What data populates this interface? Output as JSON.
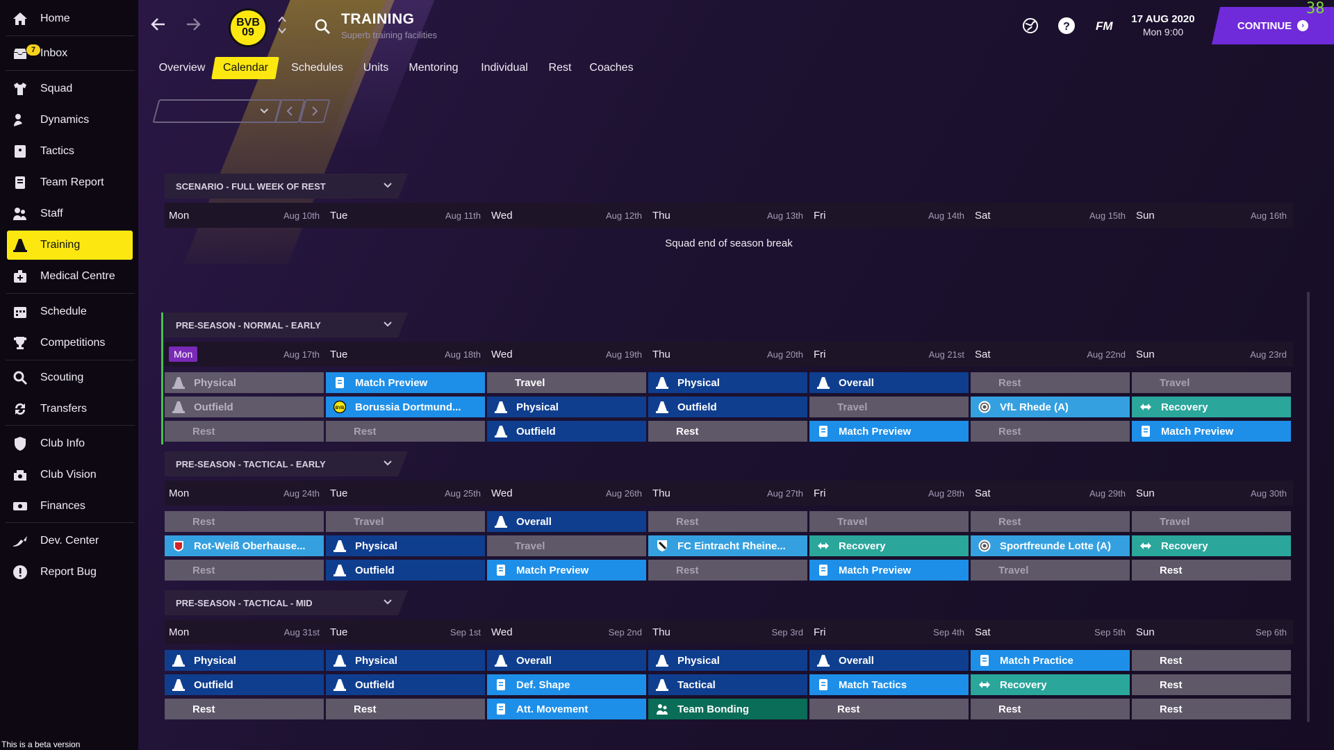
{
  "sidebar": {
    "items": [
      {
        "label": "Home",
        "icon": "home-icon"
      },
      {
        "label": "Inbox",
        "icon": "inbox-icon",
        "badge": "7"
      },
      {
        "label": "Squad",
        "icon": "shirt-icon"
      },
      {
        "label": "Dynamics",
        "icon": "dynamics-icon"
      },
      {
        "label": "Tactics",
        "icon": "tactics-icon"
      },
      {
        "label": "Team Report",
        "icon": "report-icon"
      },
      {
        "label": "Staff",
        "icon": "staff-icon"
      },
      {
        "label": "Training",
        "icon": "training-cone-icon",
        "active": true
      },
      {
        "label": "Medical Centre",
        "icon": "medical-icon"
      },
      {
        "label": "Schedule",
        "icon": "calendar-icon"
      },
      {
        "label": "Competitions",
        "icon": "trophy-icon"
      },
      {
        "label": "Scouting",
        "icon": "magnifier-icon"
      },
      {
        "label": "Transfers",
        "icon": "transfer-icon"
      },
      {
        "label": "Club Info",
        "icon": "shield-icon"
      },
      {
        "label": "Club Vision",
        "icon": "vision-icon"
      },
      {
        "label": "Finances",
        "icon": "money-icon"
      },
      {
        "label": "Dev. Center",
        "icon": "dev-center-icon"
      },
      {
        "label": "Report Bug",
        "icon": "exclamation-icon"
      }
    ],
    "beta_text": "This is a beta version"
  },
  "header": {
    "title": "TRAINING",
    "subtitle": "Superb training facilities",
    "crest_text": "BVB 09",
    "date": "17 AUG 2020",
    "time": "Mon 9:00",
    "fm_label": "FM",
    "continue_label": "CONTINUE",
    "fps": "38"
  },
  "tabs": [
    "Overview",
    "Calendar",
    "Schedules",
    "Units",
    "Mentoring",
    "Individual",
    "Rest",
    "Coaches"
  ],
  "active_tab": "Calendar",
  "colors": {
    "accent_yellow": "#fce810",
    "continue_purple": "#6f2bd9",
    "navy_session": "#0f3e8f",
    "sky_session": "#1e8fe8",
    "teal_session": "#2aa69b",
    "green_session": "#0a6d57",
    "grey_session": "#5e5869"
  },
  "sections": [
    {
      "title": "SCENARIO - FULL WEEK OF REST",
      "days": [
        {
          "day": "Mon",
          "date": "Aug 10th"
        },
        {
          "day": "Tue",
          "date": "Aug 11th"
        },
        {
          "day": "Wed",
          "date": "Aug 12th"
        },
        {
          "day": "Thu",
          "date": "Aug 13th"
        },
        {
          "day": "Fri",
          "date": "Aug 14th"
        },
        {
          "day": "Sat",
          "date": "Aug 15th"
        },
        {
          "day": "Sun",
          "date": "Aug 16th"
        }
      ],
      "note": "Squad end of season break",
      "sessions": []
    },
    {
      "title": "PRE-SEASON - NORMAL - EARLY",
      "days": [
        {
          "day": "Mon",
          "date": "Aug 17th",
          "active": true
        },
        {
          "day": "Tue",
          "date": "Aug 18th"
        },
        {
          "day": "Wed",
          "date": "Aug 19th"
        },
        {
          "day": "Thu",
          "date": "Aug 20th"
        },
        {
          "day": "Fri",
          "date": "Aug 21st"
        },
        {
          "day": "Sat",
          "date": "Aug 22nd"
        },
        {
          "day": "Sun",
          "date": "Aug 23rd"
        }
      ],
      "sessions": [
        [
          {
            "label": "Physical",
            "style": "grey",
            "icon": "cone"
          },
          {
            "label": "Match Preview",
            "style": "sky",
            "icon": "doc"
          },
          {
            "label": "Travel",
            "style": "grey-label"
          },
          {
            "label": "Physical",
            "style": "navy",
            "icon": "cone"
          },
          {
            "label": "Overall",
            "style": "navy",
            "icon": "cone"
          },
          {
            "label": "Rest",
            "style": "rest"
          },
          {
            "label": "Travel",
            "style": "rest"
          }
        ],
        [
          {
            "label": "Outfield",
            "style": "grey",
            "icon": "cone"
          },
          {
            "label": "Borussia Dortmund...",
            "style": "sky",
            "icon": "bvb"
          },
          {
            "label": "Physical",
            "style": "navy",
            "icon": "cone"
          },
          {
            "label": "Outfield",
            "style": "navy",
            "icon": "cone"
          },
          {
            "label": "Travel",
            "style": "rest"
          },
          {
            "label": "VfL Rhede (A)",
            "style": "lightsky",
            "icon": "club"
          },
          {
            "label": "Recovery",
            "style": "teal",
            "icon": "recovery"
          }
        ],
        [
          {
            "label": "Rest",
            "style": "rest"
          },
          {
            "label": "Rest",
            "style": "rest"
          },
          {
            "label": "Outfield",
            "style": "navy",
            "icon": "cone"
          },
          {
            "label": "Rest",
            "style": "restw"
          },
          {
            "label": "Match Preview",
            "style": "sky",
            "icon": "doc"
          },
          {
            "label": "Rest",
            "style": "rest"
          },
          {
            "label": "Match Preview",
            "style": "sky",
            "icon": "doc"
          }
        ]
      ]
    },
    {
      "title": "PRE-SEASON - TACTICAL - EARLY",
      "days": [
        {
          "day": "Mon",
          "date": "Aug 24th"
        },
        {
          "day": "Tue",
          "date": "Aug 25th"
        },
        {
          "day": "Wed",
          "date": "Aug 26th"
        },
        {
          "day": "Thu",
          "date": "Aug 27th"
        },
        {
          "day": "Fri",
          "date": "Aug 28th"
        },
        {
          "day": "Sat",
          "date": "Aug 29th"
        },
        {
          "day": "Sun",
          "date": "Aug 30th"
        }
      ],
      "sessions": [
        [
          {
            "label": "Rest",
            "style": "rest"
          },
          {
            "label": "Travel",
            "style": "rest"
          },
          {
            "label": "Overall",
            "style": "navy",
            "icon": "cone"
          },
          {
            "label": "Rest",
            "style": "rest"
          },
          {
            "label": "Travel",
            "style": "rest"
          },
          {
            "label": "Rest",
            "style": "rest"
          },
          {
            "label": "Travel",
            "style": "rest"
          }
        ],
        [
          {
            "label": "Rot-Weiß Oberhause...",
            "style": "lightsky",
            "icon": "club-red"
          },
          {
            "label": "Physical",
            "style": "navy",
            "icon": "cone"
          },
          {
            "label": "Travel",
            "style": "rest"
          },
          {
            "label": "FC Eintracht Rheine...",
            "style": "lightsky",
            "icon": "club-shield"
          },
          {
            "label": "Recovery",
            "style": "teal",
            "icon": "recovery"
          },
          {
            "label": "Sportfreunde Lotte (A)",
            "style": "lightsky",
            "icon": "club"
          },
          {
            "label": "Recovery",
            "style": "teal",
            "icon": "recovery"
          }
        ],
        [
          {
            "label": "Rest",
            "style": "rest"
          },
          {
            "label": "Outfield",
            "style": "navy",
            "icon": "cone"
          },
          {
            "label": "Match Preview",
            "style": "sky",
            "icon": "doc"
          },
          {
            "label": "Rest",
            "style": "rest"
          },
          {
            "label": "Match Preview",
            "style": "sky",
            "icon": "doc"
          },
          {
            "label": "Travel",
            "style": "rest"
          },
          {
            "label": "Rest",
            "style": "restw"
          }
        ]
      ]
    },
    {
      "title": "PRE-SEASON - TACTICAL - MID",
      "days": [
        {
          "day": "Mon",
          "date": "Aug 31st"
        },
        {
          "day": "Tue",
          "date": "Sep 1st"
        },
        {
          "day": "Wed",
          "date": "Sep 2nd"
        },
        {
          "day": "Thu",
          "date": "Sep 3rd"
        },
        {
          "day": "Fri",
          "date": "Sep 4th"
        },
        {
          "day": "Sat",
          "date": "Sep 5th"
        },
        {
          "day": "Sun",
          "date": "Sep 6th"
        }
      ],
      "sessions": [
        [
          {
            "label": "Physical",
            "style": "navy",
            "icon": "cone"
          },
          {
            "label": "Physical",
            "style": "navy",
            "icon": "cone"
          },
          {
            "label": "Overall",
            "style": "navy",
            "icon": "cone"
          },
          {
            "label": "Physical",
            "style": "navy",
            "icon": "cone"
          },
          {
            "label": "Overall",
            "style": "navy",
            "icon": "cone"
          },
          {
            "label": "Match Practice",
            "style": "sky",
            "icon": "doc"
          },
          {
            "label": "Rest",
            "style": "restw"
          }
        ],
        [
          {
            "label": "Outfield",
            "style": "navy",
            "icon": "cone"
          },
          {
            "label": "Outfield",
            "style": "navy",
            "icon": "cone"
          },
          {
            "label": "Def. Shape",
            "style": "sky",
            "icon": "doc"
          },
          {
            "label": "Tactical",
            "style": "navy",
            "icon": "cone"
          },
          {
            "label": "Match Tactics",
            "style": "sky",
            "icon": "doc"
          },
          {
            "label": "Recovery",
            "style": "teal",
            "icon": "recovery"
          },
          {
            "label": "Rest",
            "style": "restw"
          }
        ],
        [
          {
            "label": "Rest",
            "style": "restw"
          },
          {
            "label": "Rest",
            "style": "restw"
          },
          {
            "label": "Att. Movement",
            "style": "sky",
            "icon": "doc"
          },
          {
            "label": "Team Bonding",
            "style": "green",
            "icon": "bonding"
          },
          {
            "label": "Rest",
            "style": "restw"
          },
          {
            "label": "Rest",
            "style": "restw"
          },
          {
            "label": "Rest",
            "style": "restw"
          }
        ]
      ]
    }
  ]
}
